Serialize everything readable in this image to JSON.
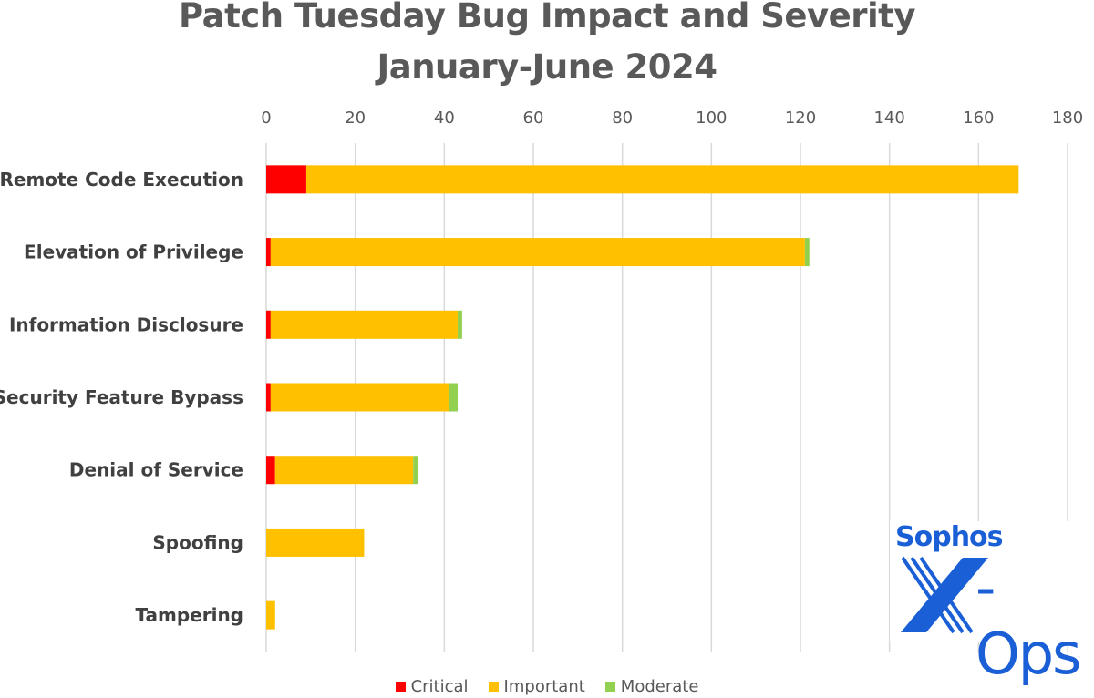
{
  "chart_data": {
    "type": "bar",
    "orientation": "horizontal",
    "stacked": true,
    "title": "Patch Tuesday Bug Impact and Severity",
    "subtitle": "January-June 2024",
    "categories": [
      "Remote Code Execution",
      "Elevation of Privilege",
      "Information Disclosure",
      "Security Feature Bypass",
      "Denial of Service",
      "Spoofing",
      "Tampering"
    ],
    "series": [
      {
        "name": "Critical",
        "color": "#ff0000",
        "values": [
          9,
          1,
          1,
          1,
          2,
          0,
          0
        ]
      },
      {
        "name": "Important",
        "color": "#ffc000",
        "values": [
          160,
          120,
          42,
          40,
          31,
          22,
          2
        ]
      },
      {
        "name": "Moderate",
        "color": "#92d050",
        "values": [
          0,
          1,
          1,
          2,
          1,
          0,
          0
        ]
      }
    ],
    "xlim": [
      0,
      180
    ],
    "xticks": [
      "0",
      "20",
      "40",
      "60",
      "80",
      "100",
      "120",
      "140",
      "160",
      "180"
    ],
    "xtick_values": [
      0,
      20,
      40,
      60,
      80,
      100,
      120,
      140,
      160,
      180
    ],
    "xaxis_position": "top",
    "grid": true,
    "legend_position": "bottom"
  },
  "logo": {
    "line1": "Sophos",
    "line2": "X-Ops",
    "color": "#1a5fd6"
  }
}
